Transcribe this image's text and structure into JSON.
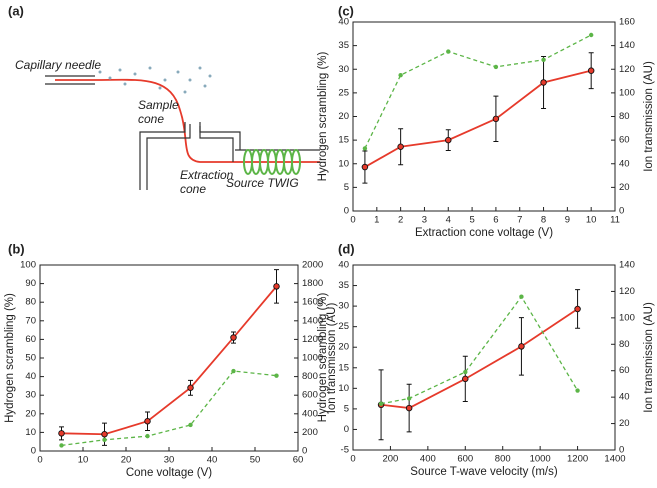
{
  "diagram": {
    "panel": "(a)",
    "labels": [
      "Capillary needle",
      "Sample",
      "cone",
      "Extraction",
      "cone",
      "Source TWIG"
    ]
  },
  "chart_data": [
    {
      "type": "line",
      "panel": "(b)",
      "x_label": "Cone voltage (V)",
      "y_label": "Hydrogen scrambling (%)",
      "y2_label": "Ion transmission (AU)",
      "x": [
        5,
        15,
        25,
        35,
        45,
        55
      ],
      "xlim": [
        0,
        60
      ],
      "xticks": [
        0,
        10,
        20,
        30,
        40,
        50,
        60
      ],
      "ylim": [
        0,
        100
      ],
      "yticks": [
        0,
        10,
        20,
        30,
        40,
        50,
        60,
        70,
        80,
        90,
        100
      ],
      "y2lim": [
        0,
        2000
      ],
      "y2ticks": [
        0,
        200,
        400,
        600,
        800,
        1000,
        1200,
        1400,
        1600,
        1800,
        2000
      ],
      "series": [
        {
          "color": "#e63a2b",
          "values": [
            9.5,
            9,
            16,
            34,
            61,
            88.5
          ],
          "errors": [
            3.5,
            6,
            5,
            4,
            3,
            9
          ]
        },
        {
          "color": "#5cb547",
          "axis": "y2",
          "dashed": true,
          "values": [
            60,
            120,
            160,
            280,
            860,
            810
          ]
        }
      ]
    },
    {
      "type": "line",
      "panel": "(c)",
      "x_label": "Extraction cone voltage (V)",
      "y_label": "Hydrogen scrambling (%)",
      "y2_label": "Ion transmission (AU)",
      "x": [
        0.5,
        2,
        4,
        6,
        8,
        10
      ],
      "xlim": [
        0,
        11
      ],
      "xticks": [
        0,
        1,
        2,
        3,
        4,
        5,
        6,
        7,
        8,
        9,
        10,
        11
      ],
      "ylim": [
        0,
        40
      ],
      "yticks": [
        0,
        5,
        10,
        15,
        20,
        25,
        30,
        35,
        40
      ],
      "y2lim": [
        0,
        160
      ],
      "y2ticks": [
        0,
        20,
        40,
        60,
        80,
        100,
        120,
        140,
        160
      ],
      "series": [
        {
          "color": "#e63a2b",
          "values": [
            9.3,
            13.6,
            15,
            19.5,
            27.2,
            29.7
          ],
          "errors": [
            3.4,
            3.8,
            2.2,
            4.8,
            5.5,
            3.8
          ]
        },
        {
          "color": "#5cb547",
          "axis": "y2",
          "dashed": true,
          "values": [
            53,
            115,
            135,
            122,
            128,
            149
          ]
        }
      ]
    },
    {
      "type": "line",
      "panel": "(d)",
      "x_label": "Source T-wave velocity (m/s)",
      "y_label": "Hydrogen scrambling (%)",
      "y2_label": "Ion transmission (AU)",
      "x": [
        150,
        300,
        600,
        900,
        1200
      ],
      "xlim": [
        0,
        1400
      ],
      "xticks": [
        0,
        200,
        400,
        600,
        800,
        1000,
        1200,
        1400
      ],
      "ylim": [
        -5,
        40
      ],
      "yticks": [
        -5,
        0,
        5,
        10,
        15,
        20,
        25,
        30,
        35,
        40
      ],
      "y2lim": [
        0,
        140
      ],
      "y2ticks": [
        0,
        20,
        40,
        60,
        80,
        100,
        120,
        140
      ],
      "series": [
        {
          "color": "#e63a2b",
          "values": [
            6,
            5.2,
            12.3,
            20.2,
            29.3
          ],
          "errors": [
            8.5,
            5.8,
            5.5,
            7,
            4.7
          ]
        },
        {
          "color": "#5cb547",
          "axis": "y2",
          "dashed": true,
          "values": [
            35,
            39,
            59,
            116,
            45
          ]
        }
      ]
    }
  ]
}
